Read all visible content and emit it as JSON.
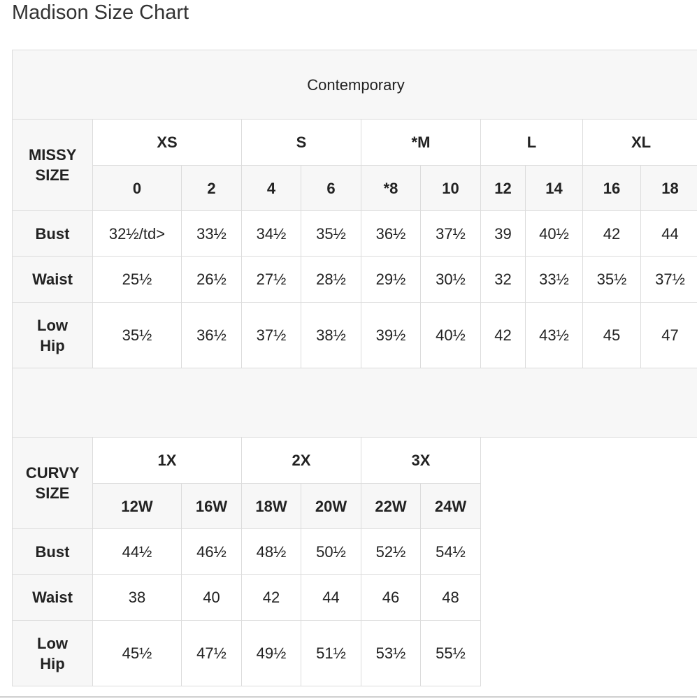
{
  "title": "Madison Size Chart",
  "section_header": "Contemporary",
  "missy": {
    "label": "MISSY SIZE",
    "groups": [
      "XS",
      "S",
      "*M",
      "L",
      "XL"
    ],
    "sizes": [
      "0",
      "2",
      "4",
      "6",
      "*8",
      "10",
      "12",
      "14",
      "16",
      "18"
    ],
    "rows": [
      {
        "label": "Bust",
        "values": [
          "32½/td>",
          "33½",
          "34½",
          "35½",
          "36½",
          "37½",
          "39",
          "40½",
          "42",
          "44"
        ]
      },
      {
        "label": "Waist",
        "values": [
          "25½",
          "26½",
          "27½",
          "28½",
          "29½",
          "30½",
          "32",
          "33½",
          "35½",
          "37½"
        ]
      },
      {
        "label": "Low Hip",
        "values": [
          "35½",
          "36½",
          "37½",
          "38½",
          "39½",
          "40½",
          "42",
          "43½",
          "45",
          "47"
        ]
      }
    ]
  },
  "curvy": {
    "label": "CURVY SIZE",
    "groups": [
      "1X",
      "2X",
      "3X"
    ],
    "sizes": [
      "12W",
      "16W",
      "18W",
      "20W",
      "22W",
      "24W"
    ],
    "rows": [
      {
        "label": "Bust",
        "values": [
          "44½",
          "46½",
          "48½",
          "50½",
          "52½",
          "54½"
        ]
      },
      {
        "label": "Waist",
        "values": [
          "38",
          "40",
          "42",
          "44",
          "46",
          "48"
        ]
      },
      {
        "label": "Low Hip",
        "values": [
          "45½",
          "47½",
          "49½",
          "51½",
          "53½",
          "55½"
        ]
      }
    ]
  }
}
